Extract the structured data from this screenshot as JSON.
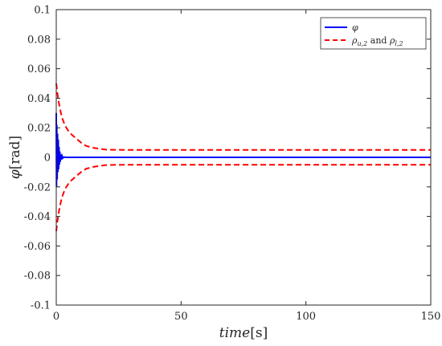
{
  "chart_data": {
    "type": "line",
    "xlabel": {
      "var": "time",
      "unit": "[s]"
    },
    "ylabel": {
      "var": "φ",
      "unit": "[rad]"
    },
    "xlim": [
      0,
      150
    ],
    "ylim": [
      -0.1,
      0.1
    ],
    "x_ticks": [
      "0",
      "50",
      "100",
      "150"
    ],
    "y_ticks": [
      "-0.1",
      "-0.08",
      "-0.06",
      "-0.04",
      "-0.02",
      "0",
      "0.02",
      "0.04",
      "0.06",
      "0.08",
      "0.1"
    ],
    "grid": false,
    "box": true,
    "legend_position": "top-right",
    "legend": {
      "phi": "φ",
      "bounds_rho": "ρ",
      "bounds_sub1": "u,2",
      "bounds_and": " and ",
      "bounds_rho2": "ρ",
      "bounds_sub2": "l,2"
    },
    "series": [
      {
        "name": "φ",
        "color": "#0000ff",
        "style": "solid",
        "x": [
          0,
          0.1,
          0.2,
          0.35,
          0.5,
          0.65,
          0.8,
          0.95,
          1.1,
          1.25,
          1.4,
          1.6,
          1.8,
          2.0,
          2.3,
          2.6,
          3.0,
          4.0,
          6.0,
          10,
          150
        ],
        "y": [
          0.03,
          -0.02,
          0.022,
          -0.015,
          0.016,
          -0.01,
          0.012,
          -0.008,
          0.007,
          -0.005,
          0.004,
          -0.003,
          0.002,
          -0.0015,
          0.001,
          -0.0005,
          0.0002,
          0,
          0,
          0,
          0
        ]
      },
      {
        "name": "ρu,2",
        "color": "#ff0000",
        "style": "dashed",
        "x": [
          0,
          0.5,
          1,
          1.5,
          2,
          2.5,
          3,
          4,
          5,
          6,
          7,
          8,
          10,
          12,
          15,
          20,
          30,
          50,
          100,
          150
        ],
        "y": [
          0.05,
          0.0429,
          0.0373,
          0.0327,
          0.0291,
          0.0261,
          0.0237,
          0.0201,
          0.0176,
          0.0157,
          0.0142,
          0.0127,
          0.0099,
          0.0077,
          0.0064,
          0.0052,
          0.005,
          0.005,
          0.005,
          0.005
        ]
      },
      {
        "name": "ρl,2",
        "color": "#ff0000",
        "style": "dashed",
        "x": [
          0,
          0.5,
          1,
          1.5,
          2,
          2.5,
          3,
          4,
          5,
          6,
          7,
          8,
          10,
          12,
          15,
          20,
          30,
          50,
          100,
          150
        ],
        "y": [
          -0.05,
          -0.0429,
          -0.0373,
          -0.0327,
          -0.0291,
          -0.0261,
          -0.0237,
          -0.0201,
          -0.0176,
          -0.0157,
          -0.0142,
          -0.0127,
          -0.0099,
          -0.0077,
          -0.0064,
          -0.0052,
          -0.005,
          -0.005,
          -0.005,
          -0.005
        ]
      }
    ]
  }
}
